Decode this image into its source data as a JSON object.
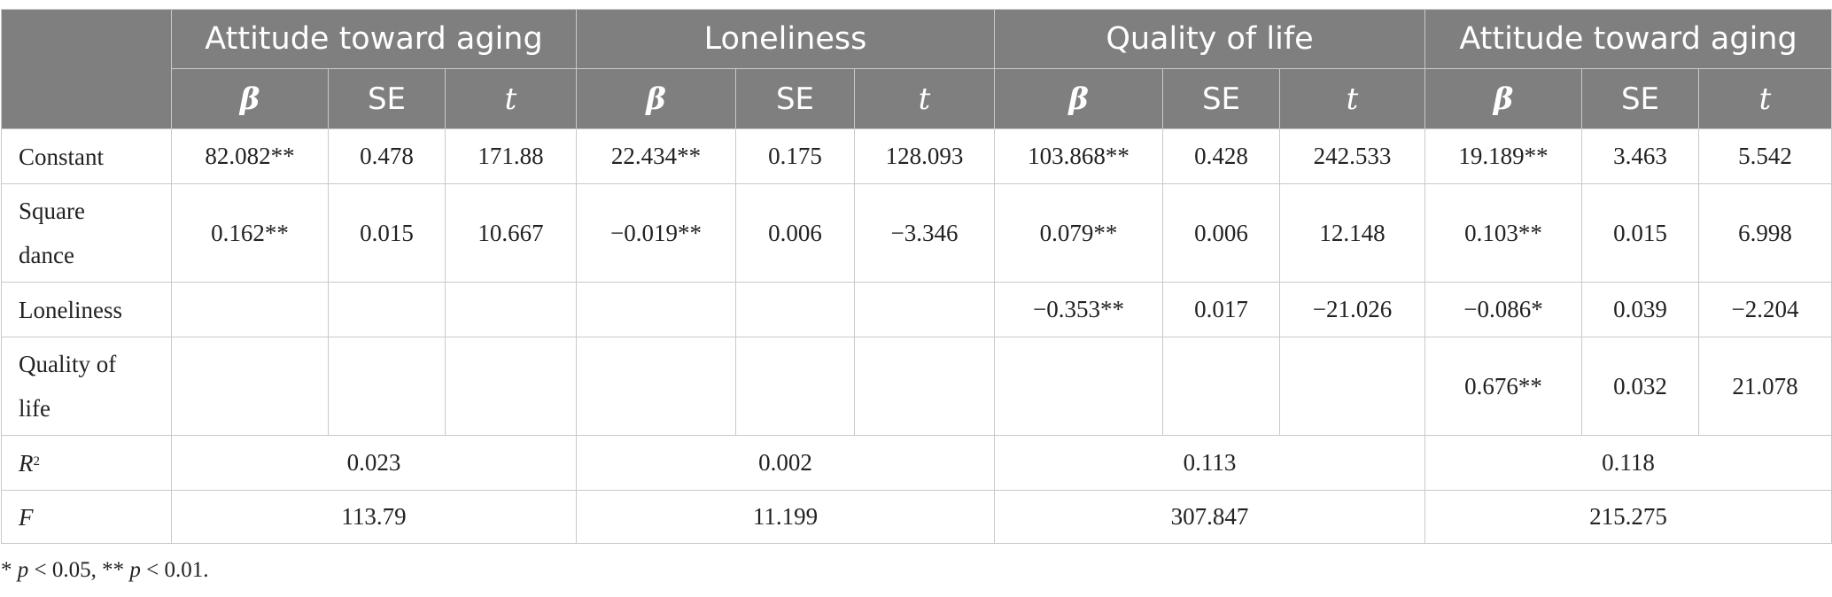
{
  "table": {
    "group_headers": [
      "Attitude toward aging",
      "Loneliness",
      "Quality of life",
      "Attitude toward aging"
    ],
    "sub_headers": [
      "β",
      "SE",
      "t"
    ],
    "rows": [
      {
        "label": "Constant",
        "cells": [
          "82.082**",
          "0.478",
          "171.88",
          "22.434**",
          "0.175",
          "128.093",
          "103.868**",
          "0.428",
          "242.533",
          "19.189**",
          "3.463",
          "5.542"
        ]
      },
      {
        "label_line1": "Square",
        "label_line2": "dance",
        "cells": [
          "0.162**",
          "0.015",
          "10.667",
          "−0.019**",
          "0.006",
          "−3.346",
          "0.079**",
          "0.006",
          "12.148",
          "0.103**",
          "0.015",
          "6.998"
        ]
      },
      {
        "label": "Loneliness",
        "cells": [
          "",
          "",
          "",
          "",
          "",
          "",
          "−0.353**",
          "0.017",
          "−21.026",
          "−0.086*",
          "0.039",
          "−2.204"
        ]
      },
      {
        "label_line1": "Quality of",
        "label_line2": "life",
        "cells": [
          "",
          "",
          "",
          "",
          "",
          "",
          "",
          "",
          "",
          "0.676**",
          "0.032",
          "21.078"
        ]
      }
    ],
    "r2": {
      "label_italic": "R",
      "label_sup": "2",
      "values": [
        "0.023",
        "0.002",
        "0.113",
        "0.118"
      ]
    },
    "f": {
      "label": "F",
      "values": [
        "113.79",
        "11.199",
        "307.847",
        "215.275"
      ]
    }
  },
  "note": {
    "star1": "* ",
    "p1": "p",
    "text1": " < 0.05, ** ",
    "p2": "p",
    "text2": " < 0.01."
  }
}
